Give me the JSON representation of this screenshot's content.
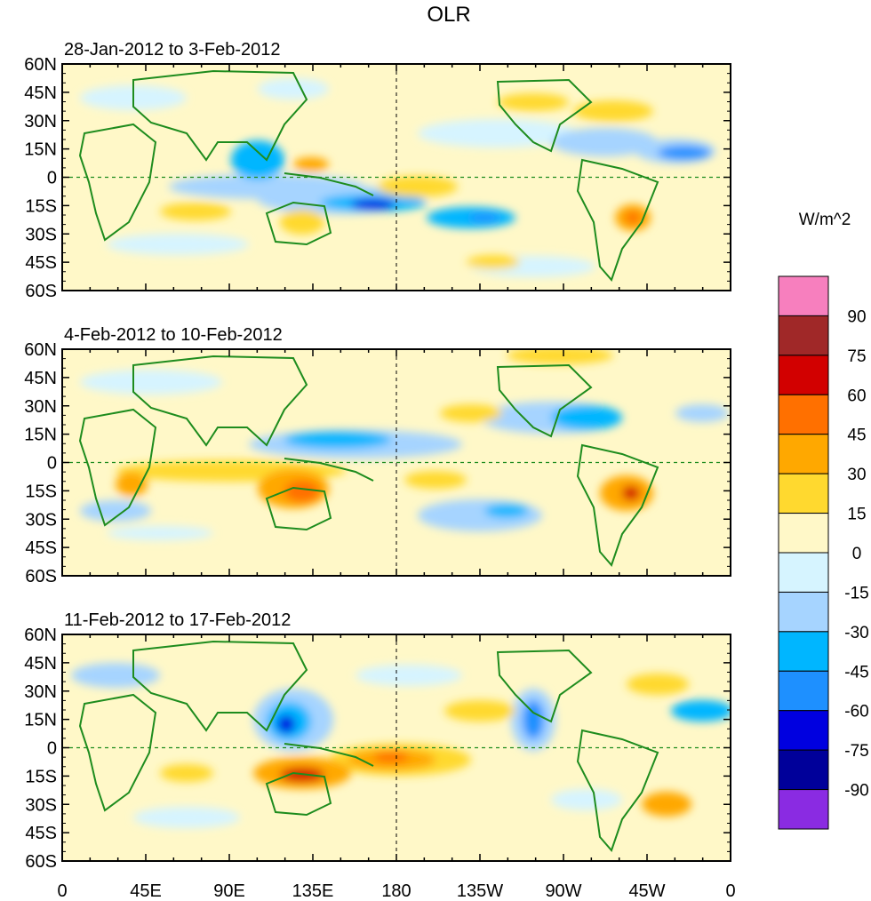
{
  "title": "OLR",
  "panels": [
    {
      "label": "28-Jan-2012 to 3-Feb-2012"
    },
    {
      "label": "4-Feb-2012 to 10-Feb-2012"
    },
    {
      "label": "11-Feb-2012 to 17-Feb-2012"
    }
  ],
  "lat_ticks": [
    "60N",
    "45N",
    "30N",
    "15N",
    "0",
    "15S",
    "30S",
    "45S",
    "60S"
  ],
  "lon_ticks": [
    "0",
    "45E",
    "90E",
    "135E",
    "180",
    "135W",
    "90W",
    "45W",
    "0"
  ],
  "colorbar": {
    "units": "W/m^2",
    "labels": [
      "90",
      "75",
      "60",
      "45",
      "30",
      "15",
      "0",
      "-15",
      "-30",
      "-45",
      "-60",
      "-75",
      "-90"
    ],
    "colors": [
      "#f77fbe",
      "#a02828",
      "#d20000",
      "#ff7000",
      "#ffa800",
      "#ffd92f",
      "#fff8c8",
      "#d6f4ff",
      "#a6d4ff",
      "#00b6ff",
      "#1e90ff",
      "#0000e0",
      "#00009a",
      "#8a2be2"
    ]
  },
  "colors": {
    "land_outline": "#1e8c1e",
    "zero_line": "#1e8c1e"
  }
}
